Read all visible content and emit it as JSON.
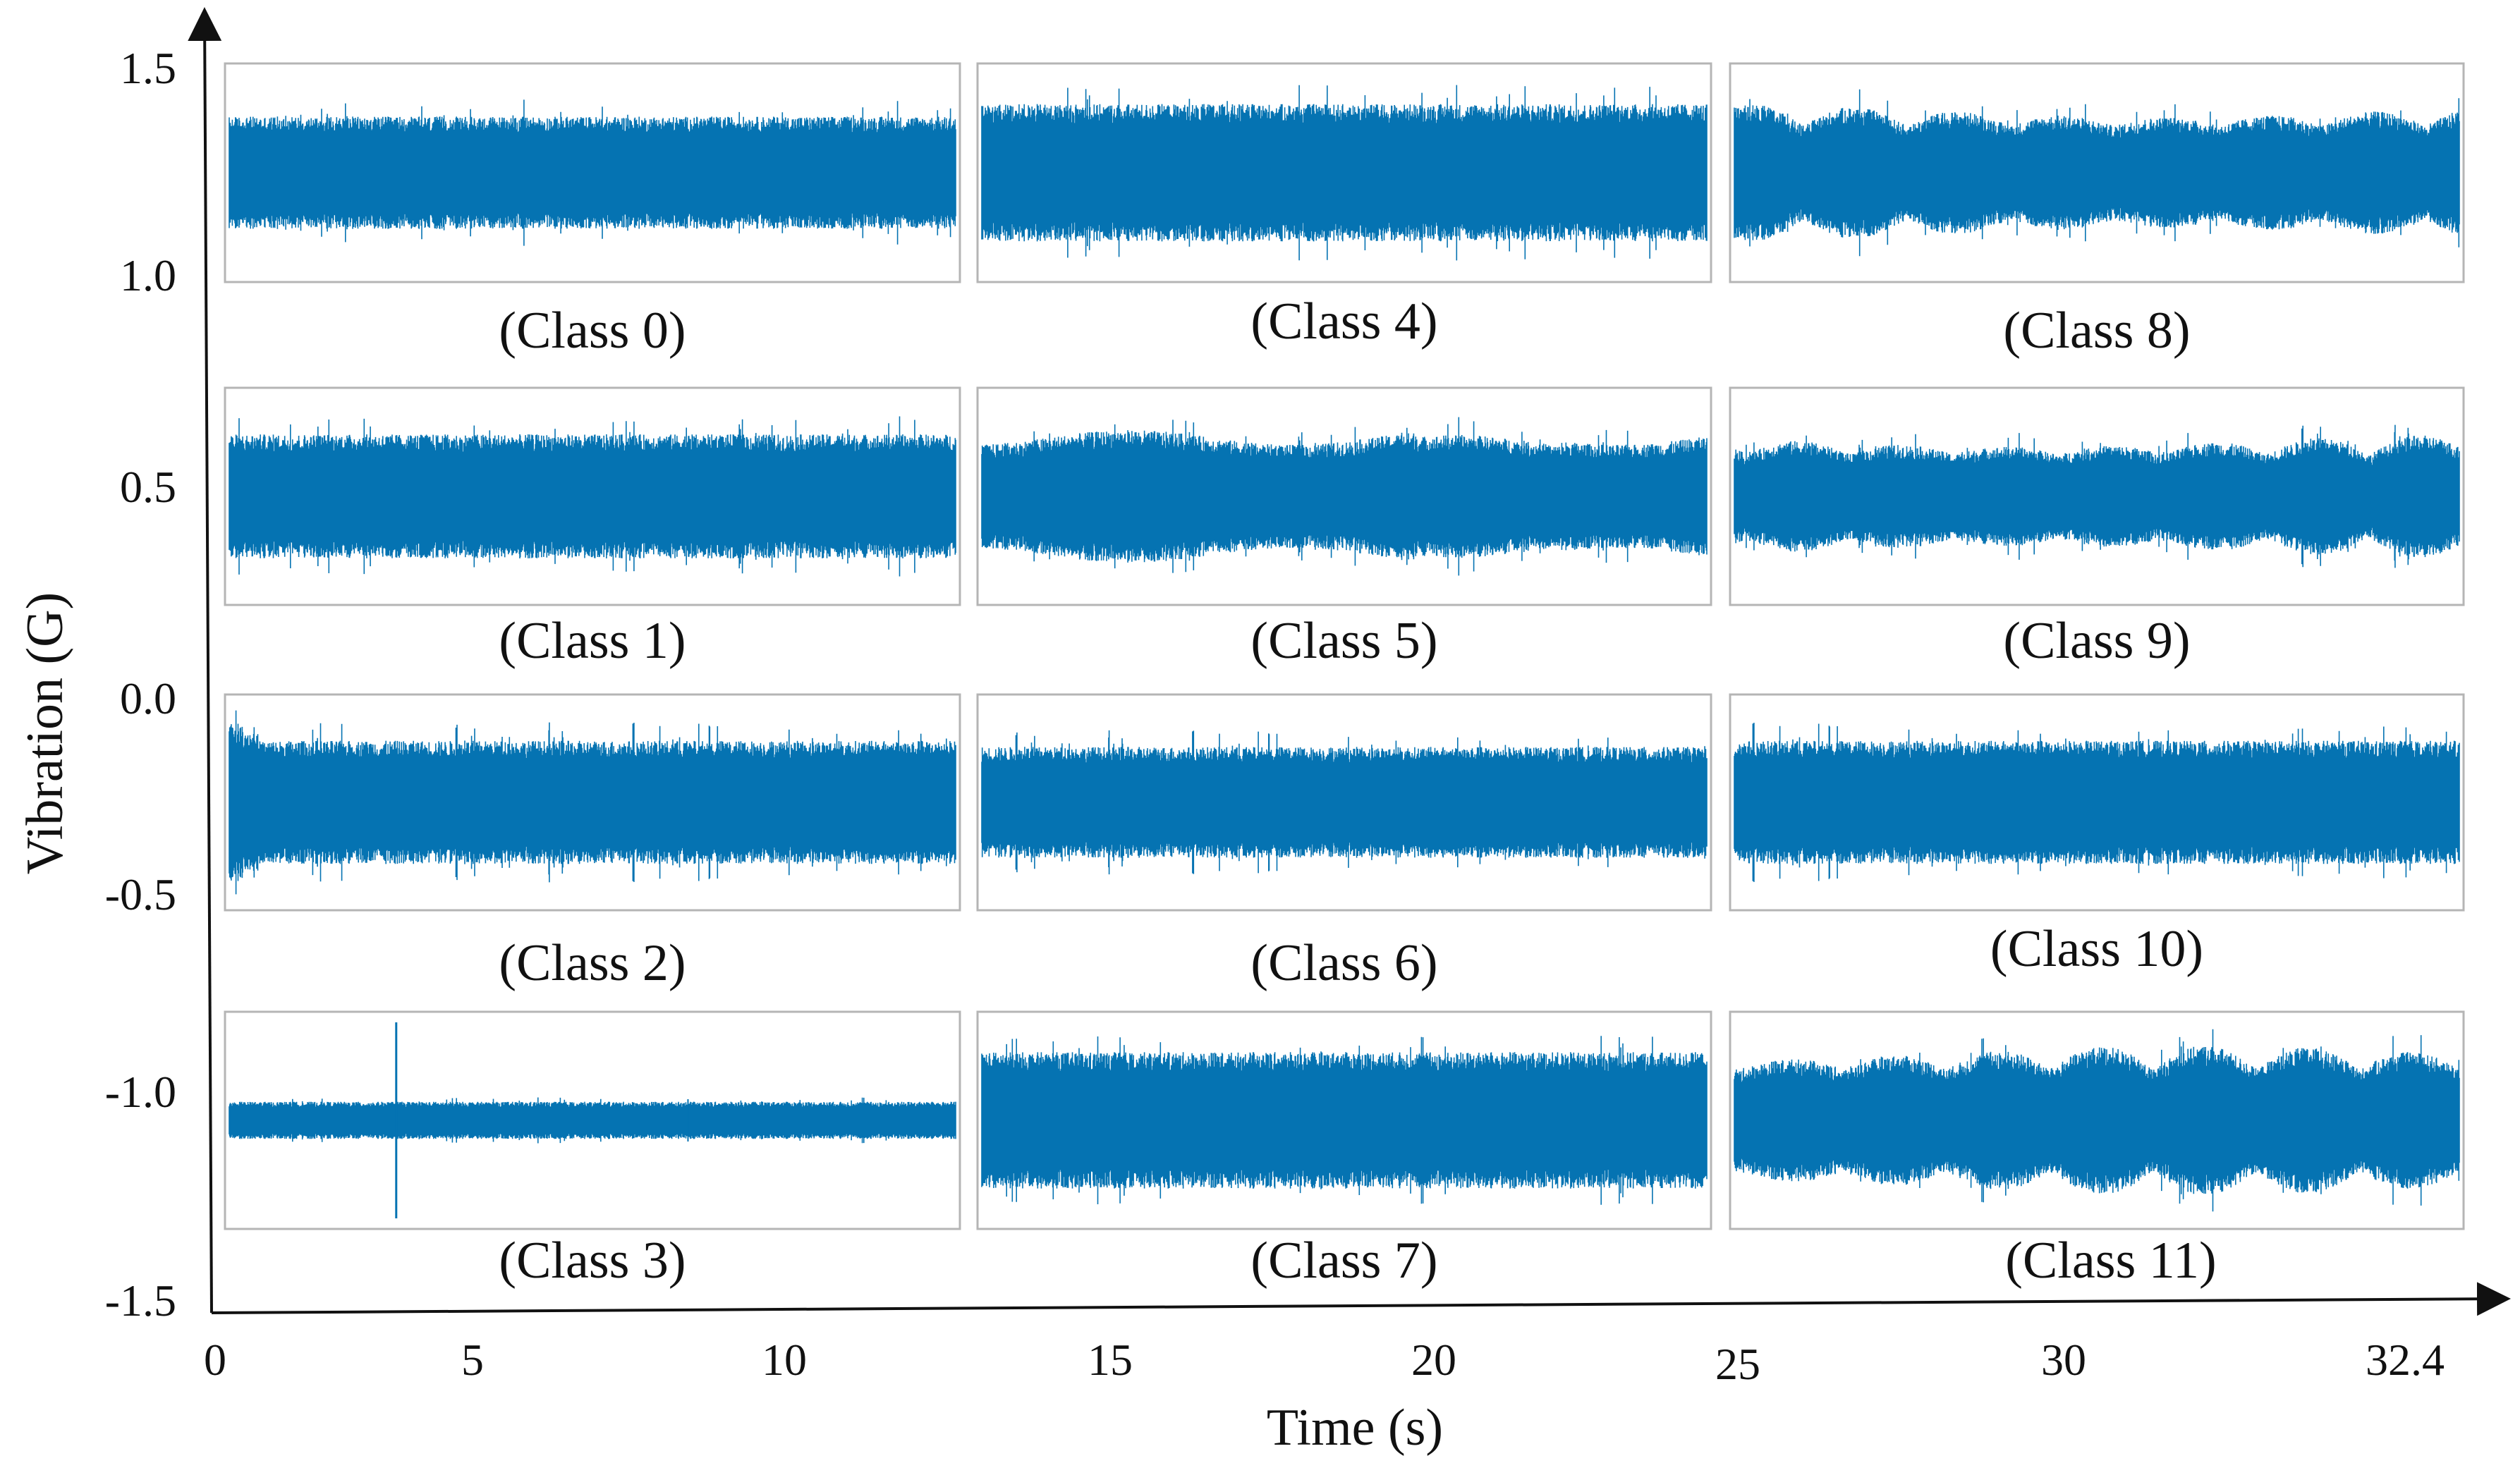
{
  "chart_data": {
    "type": "line",
    "title": "",
    "xlabel": "Time (s)",
    "ylabel": "Vibration (G)",
    "x_ticks": [
      "0",
      "5",
      "10",
      "15",
      "20",
      "25",
      "30",
      "32.4"
    ],
    "y_ticks": [
      "1.5",
      "1.0",
      "0.5",
      "0.0",
      "-0.5",
      "-1.0",
      "-1.5"
    ],
    "xlim": [
      0,
      32.4
    ],
    "ylim": [
      -1.5,
      1.5
    ],
    "grid": false,
    "legend": "none",
    "series_color": "#0573B2",
    "panels": [
      {
        "label": "(Class 0)",
        "amplitude": 0.18,
        "envelope": "flat"
      },
      {
        "label": "(Class 1)",
        "amplitude": 0.2,
        "envelope": "flat"
      },
      {
        "label": "(Class 2)",
        "amplitude": 0.2,
        "envelope": "decay-start"
      },
      {
        "label": "(Class 3)",
        "amplitude": 0.06,
        "envelope": "impulse"
      },
      {
        "label": "(Class 4)",
        "amplitude": 0.22,
        "envelope": "flat"
      },
      {
        "label": "(Class 5)",
        "amplitude": 0.2,
        "envelope": "wavy"
      },
      {
        "label": "(Class 6)",
        "amplitude": 0.18,
        "envelope": "flat"
      },
      {
        "label": "(Class 7)",
        "amplitude": 0.22,
        "envelope": "flat"
      },
      {
        "label": "(Class 8)",
        "amplitude": 0.2,
        "envelope": "bursty"
      },
      {
        "label": "(Class 9)",
        "amplitude": 0.18,
        "envelope": "bursty"
      },
      {
        "label": "(Class 10)",
        "amplitude": 0.2,
        "envelope": "flat"
      },
      {
        "label": "(Class 11)",
        "amplitude": 0.22,
        "envelope": "bursty"
      }
    ]
  }
}
